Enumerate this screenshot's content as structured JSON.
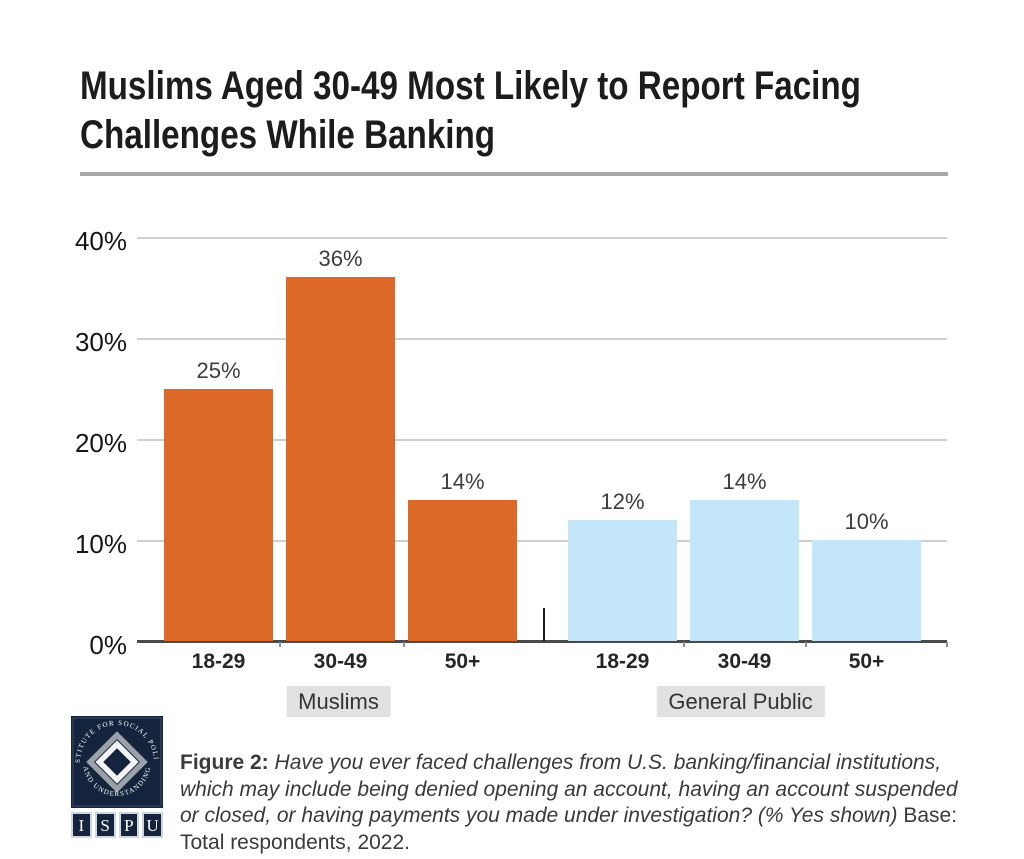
{
  "header": {
    "title_lines": [
      "Muslims Aged 30-49 Most Likely to Report Facing",
      "Challenges While Banking"
    ]
  },
  "chart_data": {
    "type": "bar",
    "title": "Muslims Aged 30-49 Most Likely to Report Facing Challenges While Banking",
    "categories": [
      "18-29",
      "30-49",
      "50+"
    ],
    "series": [
      {
        "name": "Muslims",
        "color": "#DC6928",
        "values": [
          25,
          36,
          14
        ]
      },
      {
        "name": "General Public",
        "color": "#C4E6F9",
        "values": [
          12,
          14,
          10
        ]
      }
    ],
    "value_suffix": "%",
    "ylim": [
      0,
      40
    ],
    "yticks": [
      {
        "label": "40%",
        "value": 40
      },
      {
        "label": "30%",
        "value": 30
      },
      {
        "label": "20%",
        "value": 20
      },
      {
        "label": "10%",
        "value": 10
      },
      {
        "label": "0%",
        "value": 0
      }
    ],
    "grid": true,
    "legend_position": "group-labels-below-axis",
    "xlabel": "",
    "ylabel": ""
  },
  "footer": {
    "figure_label": "Figure 2:",
    "question_italic": "Have you ever faced challenges from U.S. banking/financial institutions, which may include being denied opening an account, having an account suspended or closed, or having payments you made under investigation? (% Yes shown)",
    "base_note": "Base: Total respondents, 2022.",
    "logo": {
      "arc_text_top": "INSTITUTE FOR SOCIAL POLICY",
      "arc_text_bottom": "AND UNDERSTANDING",
      "acronym": [
        "I",
        "S",
        "P",
        "U"
      ]
    }
  },
  "colors": {
    "accent_orange": "#DC6928",
    "accent_blue": "#C4E6F9",
    "navy": "#15243D",
    "gridline": "#CFCFCF",
    "axis": "#4A4A4A",
    "title_divider": "#A9A9A9",
    "group_label_bg": "#E1E1E1"
  }
}
